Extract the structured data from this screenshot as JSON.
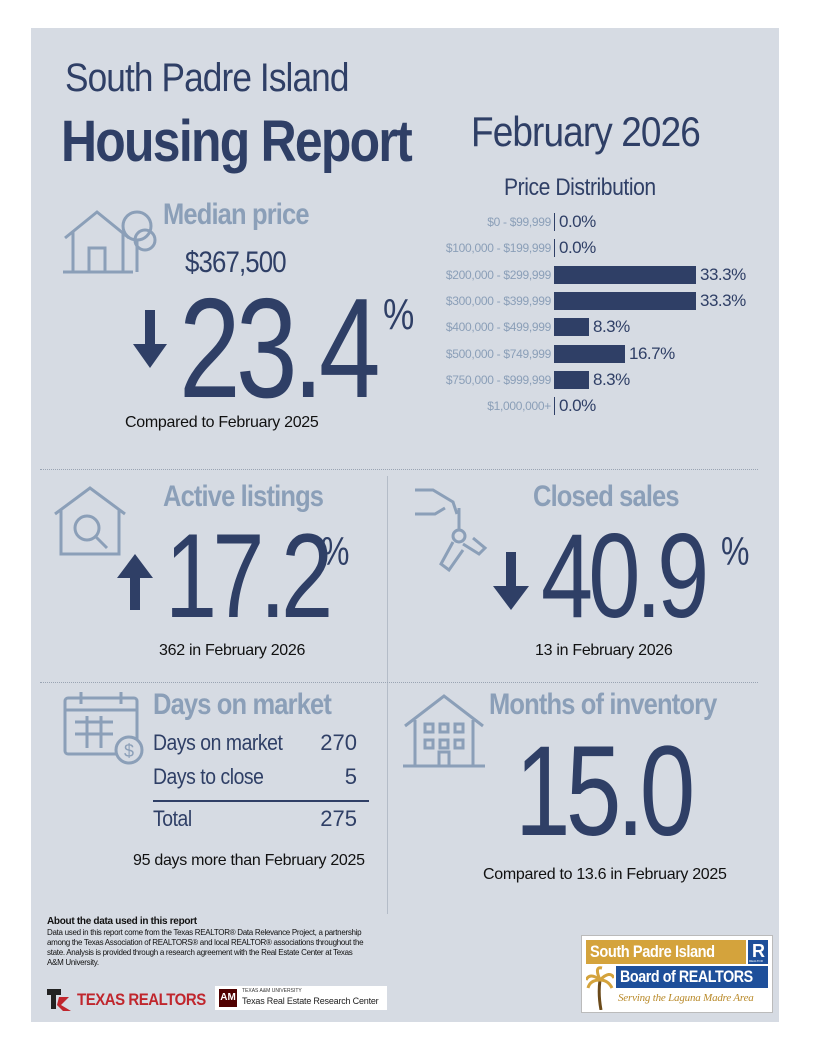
{
  "header": {
    "location": "South Padre Island",
    "title": "Housing Report",
    "period": "February 2026"
  },
  "median_price": {
    "title": "Median price",
    "value": "$367,500",
    "change": "23.4",
    "percent_sign": "%",
    "direction": "down",
    "caption": "Compared to February 2025"
  },
  "price_distribution": {
    "title": "Price Distribution",
    "rows": [
      {
        "range": "$0 - $99,999",
        "pct": "0.0%",
        "value": 0.0
      },
      {
        "range": "$100,000 - $199,999",
        "pct": "0.0%",
        "value": 0.0
      },
      {
        "range": "$200,000 - $299,999",
        "pct": "33.3%",
        "value": 33.3
      },
      {
        "range": "$300,000 - $399,999",
        "pct": "33.3%",
        "value": 33.3
      },
      {
        "range": "$400,000 - $499,999",
        "pct": "8.3%",
        "value": 8.3
      },
      {
        "range": "$500,000 - $749,999",
        "pct": "16.7%",
        "value": 16.7
      },
      {
        "range": "$750,000 - $999,999",
        "pct": "8.3%",
        "value": 8.3
      },
      {
        "range": "$1,000,000+",
        "pct": "0.0%",
        "value": 0.0
      }
    ]
  },
  "active_listings": {
    "title": "Active listings",
    "change": "17.2",
    "percent_sign": "%",
    "direction": "up",
    "caption": "362 in February 2026"
  },
  "closed_sales": {
    "title": "Closed sales",
    "change": "40.9",
    "percent_sign": "%",
    "direction": "down",
    "caption": "13 in February 2026"
  },
  "days_on_market": {
    "title": "Days on market",
    "rows": [
      {
        "label": "Days on market",
        "value": "270"
      },
      {
        "label": "Days to close",
        "value": "5"
      }
    ],
    "total_label": "Total",
    "total_value": "275",
    "caption": "95 days more than February 2025"
  },
  "months_inventory": {
    "title": "Months of inventory",
    "value": "15.0",
    "caption": "Compared to 13.6 in February 2025"
  },
  "footer": {
    "about_title": "About the data used in this report",
    "about_text": "Data used in this report come from the Texas REALTOR® Data Relevance Project, a partnership among the Texas Association of REALTORS® and local REALTOR® associations throughout the state. Analysis is provided through a research agreement with the Real Estate Center at Texas A&M University.",
    "texas_realtors": "TEXAS REALTORS",
    "tamu_small": "TEXAS A&M UNIVERSITY",
    "tamu_center": "Texas Real Estate Research Center",
    "board_line1": "South Padre Island",
    "board_line2": "Board of REALTORS",
    "board_tagline": "Serving the Laguna Madre Area",
    "realtor_r": "R",
    "realtor_small": "REALTOR"
  }
}
